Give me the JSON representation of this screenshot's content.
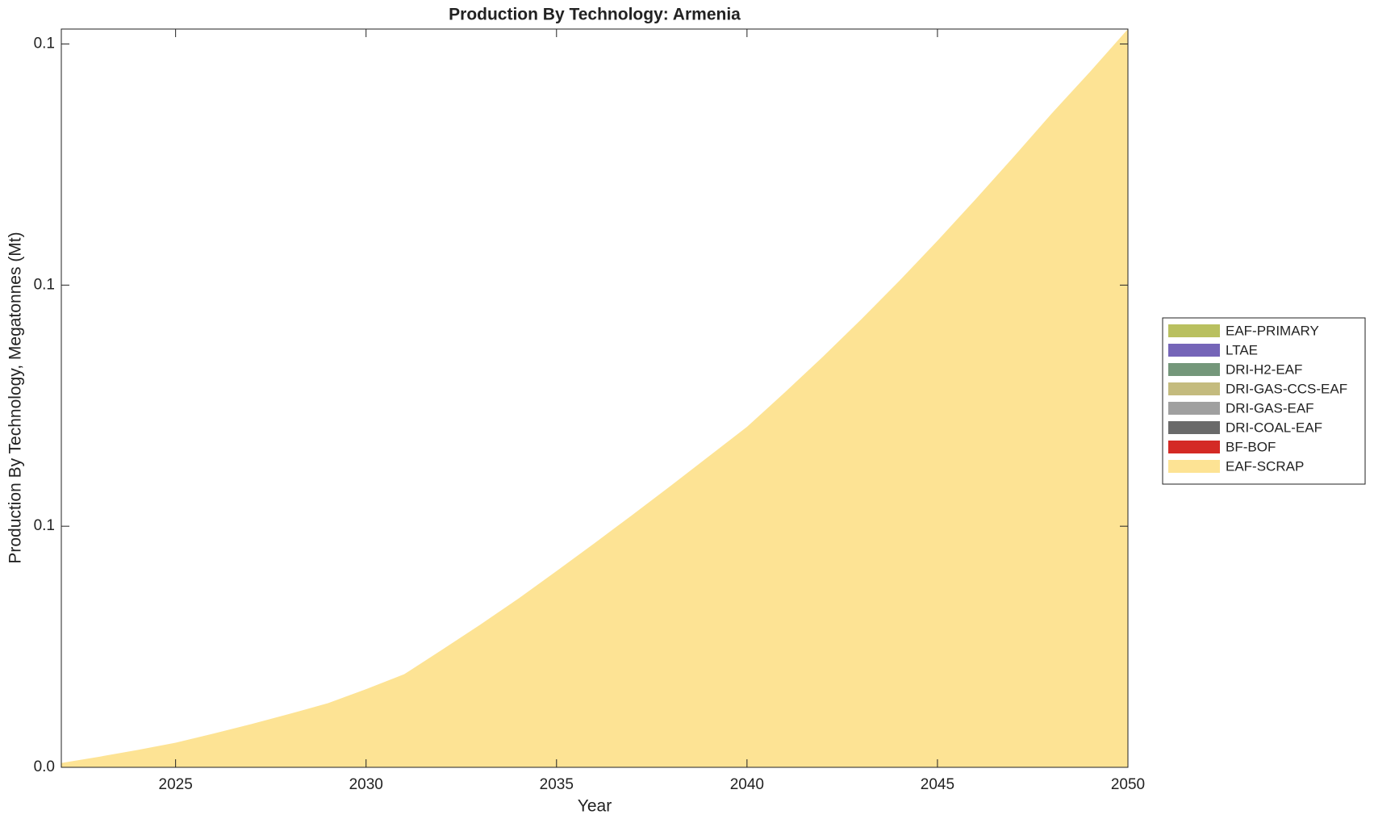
{
  "chart_data": {
    "type": "stacked_area",
    "title": "Production By Technology: Armenia",
    "xlabel": "Year",
    "ylabel": "Production By Technology, Megatonnes (Mt)",
    "x": [
      2022,
      2023,
      2024,
      2025,
      2026,
      2027,
      2028,
      2029,
      2030,
      2031,
      2032,
      2033,
      2034,
      2035,
      2036,
      2037,
      2038,
      2039,
      2040,
      2041,
      2042,
      2043,
      2044,
      2045,
      2046,
      2047,
      2048,
      2049,
      2050
    ],
    "xlim": [
      2022,
      2050
    ],
    "xticks": [
      2025,
      2030,
      2035,
      2040,
      2045,
      2050
    ],
    "ylim": [
      0,
      0.1531
    ],
    "yticks": [
      {
        "value": 0,
        "label": "0.0"
      },
      {
        "value": 0.05,
        "label": "0.1"
      },
      0.1,
      {
        "value": 0.15,
        "label": "0.1"
      }
    ],
    "series": [
      {
        "name": "EAF-SCRAP",
        "color": "#fde394",
        "values": [
          0.0009,
          0.0022,
          0.0036,
          0.0051,
          0.007,
          0.009,
          0.0111,
          0.0133,
          0.0162,
          0.0193,
          0.0244,
          0.0296,
          0.035,
          0.0407,
          0.0465,
          0.0524,
          0.0584,
          0.0645,
          0.0706,
          0.0778,
          0.0852,
          0.0929,
          0.1009,
          0.1092,
          0.1178,
          0.1266,
          0.1356,
          0.1442,
          0.1531
        ]
      },
      {
        "name": "BF-BOF",
        "color": "#d42a25",
        "values": [
          0,
          0,
          0,
          0,
          0,
          0,
          0,
          0,
          0,
          0,
          0,
          0,
          0,
          0,
          0,
          0,
          0,
          0,
          0,
          0,
          0,
          0,
          0,
          0,
          0,
          0,
          0,
          0,
          0
        ]
      },
      {
        "name": "DRI-COAL-EAF",
        "color": "#6a6a6a",
        "values": [
          0,
          0,
          0,
          0,
          0,
          0,
          0,
          0,
          0,
          0,
          0,
          0,
          0,
          0,
          0,
          0,
          0,
          0,
          0,
          0,
          0,
          0,
          0,
          0,
          0,
          0,
          0,
          0,
          0
        ]
      },
      {
        "name": "DRI-GAS-EAF",
        "color": "#a0a0a0",
        "values": [
          0,
          0,
          0,
          0,
          0,
          0,
          0,
          0,
          0,
          0,
          0,
          0,
          0,
          0,
          0,
          0,
          0,
          0,
          0,
          0,
          0,
          0,
          0,
          0,
          0,
          0,
          0,
          0,
          0
        ]
      },
      {
        "name": "DRI-GAS-CCS-EAF",
        "color": "#c4bb7e",
        "values": [
          0,
          0,
          0,
          0,
          0,
          0,
          0,
          0,
          0,
          0,
          0,
          0,
          0,
          0,
          0,
          0,
          0,
          0,
          0,
          0,
          0,
          0,
          0,
          0,
          0,
          0,
          0,
          0,
          0
        ]
      },
      {
        "name": "DRI-H2-EAF",
        "color": "#74977a",
        "values": [
          0,
          0,
          0,
          0,
          0,
          0,
          0,
          0,
          0,
          0,
          0,
          0,
          0,
          0,
          0,
          0,
          0,
          0,
          0,
          0,
          0,
          0,
          0,
          0,
          0,
          0,
          0,
          0,
          0
        ]
      },
      {
        "name": "LTAE",
        "color": "#7565b8",
        "values": [
          0,
          0,
          0,
          0,
          0,
          0,
          0,
          0,
          0,
          0,
          0,
          0,
          0,
          0,
          0,
          0,
          0,
          0,
          0,
          0,
          0,
          0,
          0,
          0,
          0,
          0,
          0,
          0,
          0
        ]
      },
      {
        "name": "EAF-PRIMARY",
        "color": "#b9c05f",
        "values": [
          0,
          0,
          0,
          0,
          0,
          0,
          0,
          0,
          0,
          0,
          0,
          0,
          0,
          0,
          0,
          0,
          0,
          0,
          0,
          0,
          0,
          0,
          0,
          0,
          0,
          0,
          0,
          0,
          0
        ]
      }
    ]
  }
}
